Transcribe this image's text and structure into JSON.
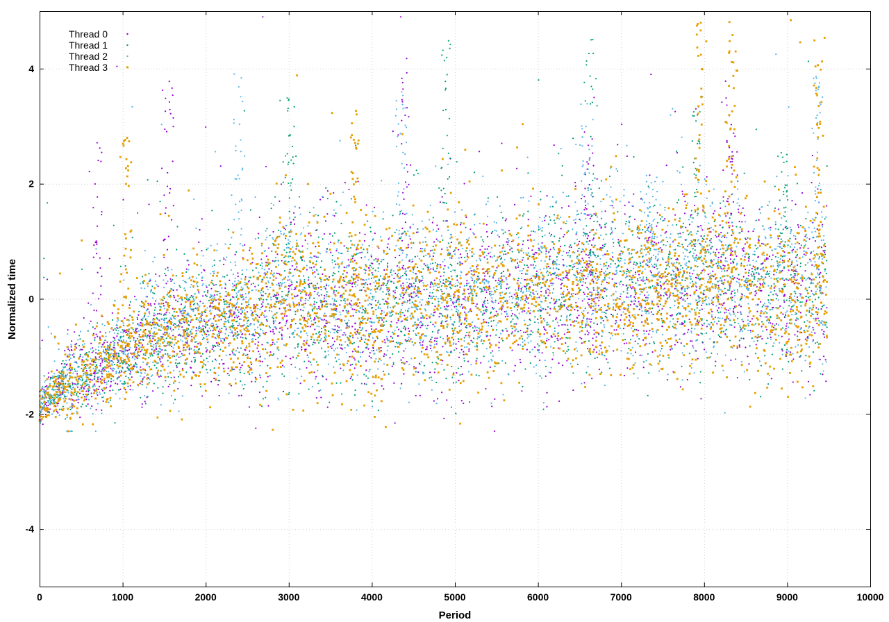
{
  "chart_data": {
    "type": "scatter",
    "title": "",
    "xlabel": "Period",
    "ylabel": "Normalized time",
    "xlim": [
      0,
      10000
    ],
    "ylim": [
      -5,
      5
    ],
    "xticks": [
      0,
      1000,
      2000,
      3000,
      4000,
      5000,
      6000,
      7000,
      8000,
      9000,
      10000
    ],
    "yticks": [
      -4,
      -2,
      0,
      2,
      4
    ],
    "xtick_labels": [
      "0",
      "1000",
      "2000",
      "3000",
      "4000",
      "5000",
      "6000",
      "7000",
      "8000",
      "9000",
      "10000"
    ],
    "ytick_labels": [
      "-4",
      "-2",
      "0",
      "2",
      "4"
    ],
    "grid": true,
    "legend_position": "top-left",
    "x_extent": [
      0,
      9480
    ],
    "points_per_series_approx": 2400,
    "series": [
      {
        "name": "Thread 0",
        "color": "#9400d3",
        "marker": "dot",
        "trend": [
          [
            0,
            -1.9
          ],
          [
            300,
            -1.5
          ],
          [
            700,
            -1.2
          ],
          [
            1000,
            -1.0
          ],
          [
            1500,
            -0.6
          ],
          [
            2000,
            -0.45
          ],
          [
            2500,
            -0.35
          ],
          [
            3000,
            0.1
          ],
          [
            3500,
            -0.2
          ],
          [
            4000,
            -0.15
          ],
          [
            5000,
            -0.05
          ],
          [
            6000,
            0.1
          ],
          [
            7000,
            0.25
          ],
          [
            8000,
            0.3
          ],
          [
            9000,
            0.15
          ],
          [
            9480,
            0.2
          ]
        ],
        "spikes": [
          [
            700,
            2.8
          ],
          [
            1550,
            3.7
          ],
          [
            4400,
            4.2
          ],
          [
            6600,
            2.9
          ],
          [
            8300,
            3.8
          ]
        ]
      },
      {
        "name": "Thread 1",
        "color": "#009e73",
        "marker": "dot",
        "trend": [
          [
            0,
            -1.85
          ],
          [
            300,
            -1.45
          ],
          [
            700,
            -1.15
          ],
          [
            1000,
            -1.0
          ],
          [
            1500,
            -0.55
          ],
          [
            2000,
            -0.4
          ],
          [
            2500,
            -0.3
          ],
          [
            3000,
            0.15
          ],
          [
            3500,
            -0.15
          ],
          [
            4000,
            -0.1
          ],
          [
            5000,
            0.0
          ],
          [
            6000,
            0.15
          ],
          [
            7000,
            0.3
          ],
          [
            8000,
            0.35
          ],
          [
            9000,
            0.2
          ],
          [
            9480,
            0.25
          ]
        ],
        "spikes": [
          [
            3000,
            3.5
          ],
          [
            4900,
            4.5
          ],
          [
            6650,
            4.7
          ],
          [
            7900,
            3.7
          ],
          [
            8950,
            2.9
          ]
        ]
      },
      {
        "name": "Thread 2",
        "color": "#56b4e9",
        "marker": "dot",
        "trend": [
          [
            0,
            -1.8
          ],
          [
            300,
            -1.45
          ],
          [
            700,
            -1.15
          ],
          [
            1000,
            -0.95
          ],
          [
            1500,
            -0.5
          ],
          [
            2000,
            -0.35
          ],
          [
            2500,
            -0.25
          ],
          [
            3000,
            0.2
          ],
          [
            3500,
            -0.1
          ],
          [
            4000,
            -0.1
          ],
          [
            5000,
            0.05
          ],
          [
            6000,
            0.2
          ],
          [
            7000,
            0.4
          ],
          [
            8000,
            0.4
          ],
          [
            9000,
            0.2
          ],
          [
            9480,
            0.3
          ]
        ],
        "spikes": [
          [
            2400,
            4.0
          ],
          [
            4350,
            3.6
          ],
          [
            6550,
            3.4
          ],
          [
            7350,
            2.2
          ],
          [
            9350,
            3.9
          ]
        ]
      },
      {
        "name": "Thread 3",
        "color": "#e69f00",
        "marker": "square",
        "trend": [
          [
            0,
            -1.85
          ],
          [
            300,
            -1.5
          ],
          [
            700,
            -1.2
          ],
          [
            1000,
            -1.0
          ],
          [
            1500,
            -0.6
          ],
          [
            2000,
            -0.45
          ],
          [
            2500,
            -0.35
          ],
          [
            3000,
            0.1
          ],
          [
            3500,
            -0.2
          ],
          [
            4000,
            -0.2
          ],
          [
            5000,
            -0.05
          ],
          [
            6000,
            0.05
          ],
          [
            7000,
            0.1
          ],
          [
            8000,
            0.2
          ],
          [
            9000,
            0.0
          ],
          [
            9480,
            0.1
          ]
        ],
        "spikes": [
          [
            1050,
            3.0
          ],
          [
            3800,
            3.45
          ],
          [
            7950,
            4.8
          ],
          [
            8320,
            4.9
          ],
          [
            9380,
            4.65
          ]
        ]
      }
    ]
  }
}
